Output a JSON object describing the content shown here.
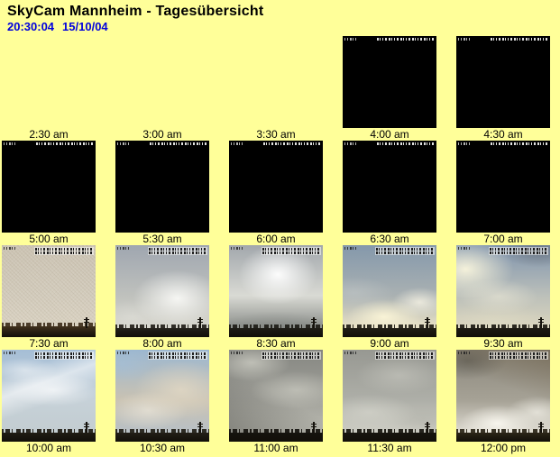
{
  "page": {
    "title": "SkyCam Mannheim - Tagesübersicht",
    "clock": "20:30:04",
    "date": "15/10/04",
    "background_color": "#FFFF99",
    "title_color": "#000000",
    "clock_color": "#0000DD"
  },
  "grid": {
    "rows": [
      {
        "cells": [
          {
            "time": "2:30 am",
            "image": "none"
          },
          {
            "time": "3:00 am",
            "image": "none"
          },
          {
            "time": "3:30 am",
            "image": "none"
          },
          {
            "time": "4:00 am",
            "image": "night"
          },
          {
            "time": "4:30 am",
            "image": "night"
          }
        ]
      },
      {
        "cells": [
          {
            "time": "5:00 am",
            "image": "night"
          },
          {
            "time": "5:30 am",
            "image": "night"
          },
          {
            "time": "6:00 am",
            "image": "night"
          },
          {
            "time": "6:30 am",
            "image": "night"
          },
          {
            "time": "7:00 am",
            "image": "night"
          }
        ]
      },
      {
        "cells": [
          {
            "time": "7:30 am",
            "image": "day",
            "variant": "fog",
            "colors": {
              "top": "#cdc5b5",
              "mid": "#d4cdbe",
              "low": "#dbd4c4",
              "horizon": "#40301d"
            }
          },
          {
            "time": "8:00 am",
            "image": "day",
            "variant": "glow-right",
            "colors": {
              "top": "#9fa6b0",
              "mid": "#bfc1bd",
              "low": "#d5d4cb",
              "horizon": "#23201a"
            }
          },
          {
            "time": "8:30 am",
            "image": "day",
            "variant": "glow-center",
            "colors": {
              "top": "#a2a7ac",
              "mid": "#d9dad4",
              "low": "#8f928e",
              "horizon": "#1e1c16"
            }
          },
          {
            "time": "9:00 am",
            "image": "day",
            "variant": "bright-low",
            "colors": {
              "top": "#8498ab",
              "mid": "#aab1b2",
              "low": "#e6dfc5",
              "horizon": "#201d15"
            }
          },
          {
            "time": "9:30 am",
            "image": "day",
            "variant": "drama",
            "colors": {
              "top": "#7e93ad",
              "mid": "#bcc0ba",
              "low": "#d8d3bd",
              "horizon": "#1d1a13"
            }
          }
        ]
      },
      {
        "cells": [
          {
            "time": "10:00 am",
            "image": "day",
            "variant": "wisps",
            "colors": {
              "top": "#a5bed6",
              "mid": "#c6d1d8",
              "low": "#c3cdd1",
              "horizon": "#1f1c14"
            }
          },
          {
            "time": "10:30 am",
            "image": "day",
            "variant": "mixed",
            "colors": {
              "top": "#9cb7d0",
              "mid": "#c9c2b2",
              "low": "#b9c0c4",
              "horizon": "#221f17"
            }
          },
          {
            "time": "11:00 am",
            "image": "day",
            "variant": "overcast-dark",
            "colors": {
              "top": "#858681",
              "mid": "#a2a29b",
              "low": "#b9b9b0",
              "horizon": "#15130e"
            }
          },
          {
            "time": "11:30 am",
            "image": "day",
            "variant": "overcast",
            "colors": {
              "top": "#979892",
              "mid": "#aeafa8",
              "low": "#cbcbc2",
              "horizon": "#17150f"
            }
          },
          {
            "time": "12:00 pm",
            "image": "day",
            "variant": "patchy",
            "colors": {
              "top": "#8a867b",
              "mid": "#a6a296",
              "low": "#dcd9cf",
              "horizon": "#2b2517"
            }
          }
        ]
      }
    ]
  }
}
